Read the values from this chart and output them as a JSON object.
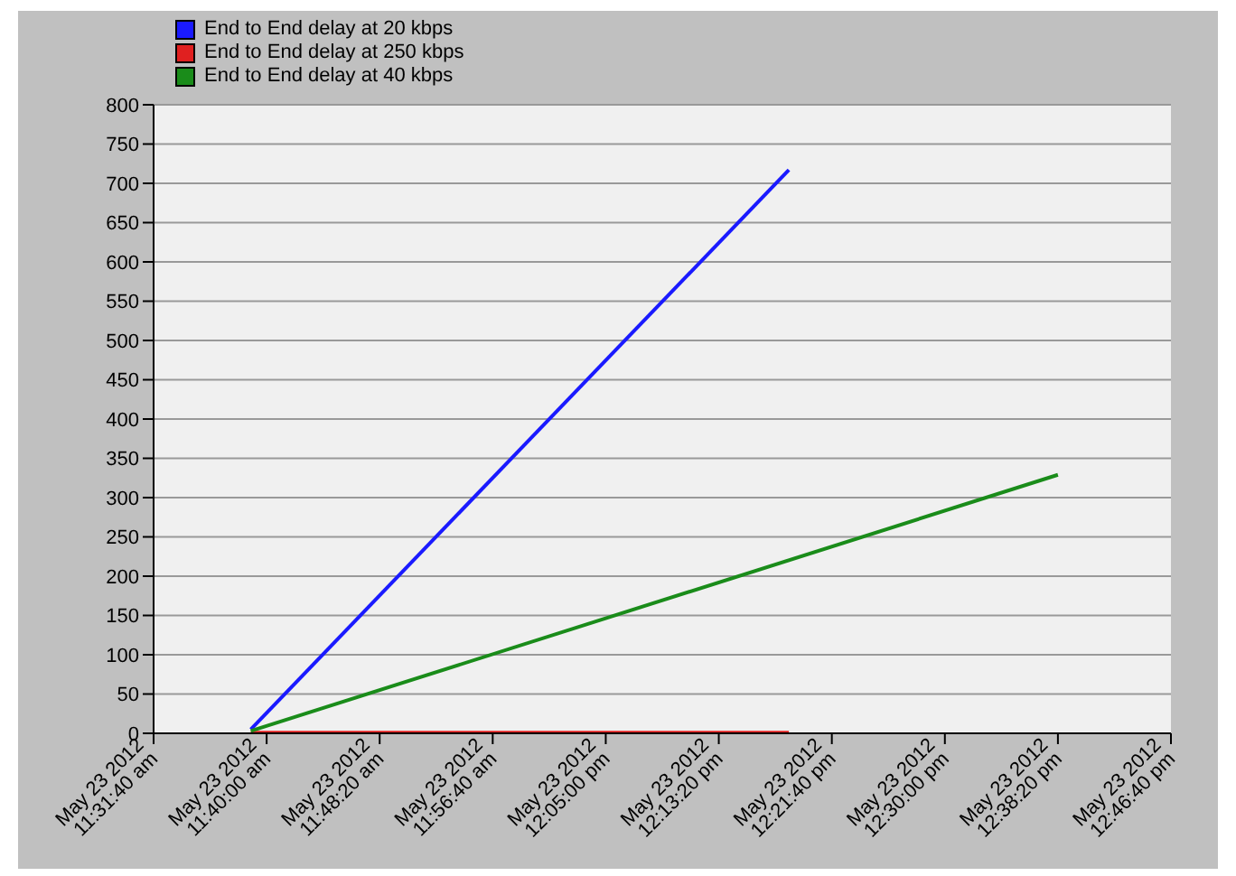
{
  "chart_data": {
    "type": "line",
    "x": [
      "2012-05-23T11:38:50",
      "2012-05-23T12:18:30"
    ],
    "series": [
      {
        "name": "End to End delay at 20 kbps",
        "color": "#1a1aff",
        "values": [
          5,
          717
        ]
      },
      {
        "name": "End to End delay at 250 kbps",
        "color": "#e02020",
        "values": [
          1,
          1
        ]
      },
      {
        "name": "End to End delay at 40 kbps",
        "color": "#1a8c1a",
        "x": [
          "2012-05-23T11:38:50",
          "2012-05-23T12:38:20"
        ],
        "values": [
          3,
          329
        ]
      }
    ],
    "xlim": [
      "2012-05-23T11:31:40",
      "2012-05-23T12:46:40"
    ],
    "xticks": [
      {
        "value": "2012-05-23T11:31:40",
        "label": "May 23 2012\n11:31:40 am"
      },
      {
        "value": "2012-05-23T11:40:00",
        "label": "May 23 2012\n11:40:00 am"
      },
      {
        "value": "2012-05-23T11:48:20",
        "label": "May 23 2012\n11:48:20 am"
      },
      {
        "value": "2012-05-23T11:56:40",
        "label": "May 23 2012\n11:56:40 am"
      },
      {
        "value": "2012-05-23T12:05:00",
        "label": "May 23 2012\n12:05:00 pm"
      },
      {
        "value": "2012-05-23T12:13:20",
        "label": "May 23 2012\n12:13:20 pm"
      },
      {
        "value": "2012-05-23T12:21:40",
        "label": "May 23 2012\n12:21:40 pm"
      },
      {
        "value": "2012-05-23T12:30:00",
        "label": "May 23 2012\n12:30:00 pm"
      },
      {
        "value": "2012-05-23T12:38:20",
        "label": "May 23 2012\n12:38:20 pm"
      },
      {
        "value": "2012-05-23T12:46:40",
        "label": "May 23 2012\n12:46:40 pm"
      }
    ],
    "ylim": [
      0,
      800
    ],
    "yticks": [
      0,
      50,
      100,
      150,
      200,
      250,
      300,
      350,
      400,
      450,
      500,
      550,
      600,
      650,
      700,
      750,
      800
    ],
    "grid": "y",
    "legend": "top left",
    "marker": "none",
    "line_style": "solid"
  }
}
